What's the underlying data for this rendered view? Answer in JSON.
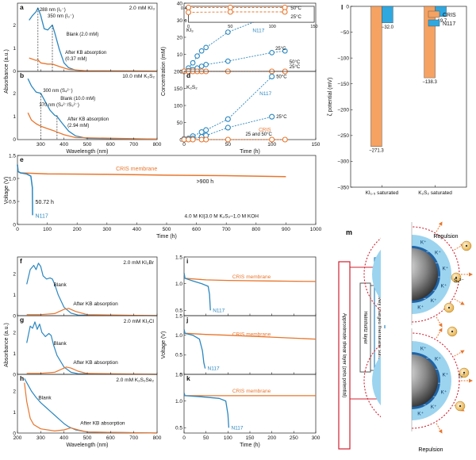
{
  "colors": {
    "orange": "#e8762d",
    "blue": "#2b87c0",
    "orange_fill": "#f5a263",
    "blue_fill": "#2fa8e0"
  },
  "text": {
    "x_wavelength": "Wavelength (nm)",
    "x_time": "Time (h)",
    "y_absorbance": "Absorbance (a.u.)",
    "y_concentration": "Concentration (mM)",
    "y_voltage": "Voltage (V)",
    "y_zeta": "ζ potential (mV)",
    "cris_membrane": "CRIS membrane",
    "n117": "N117",
    "cris": "CRIS",
    "m_outer": "Approximate shear layer (zeta potential)",
    "m_helmholtz": "Helmholtz layer",
    "m_surface": "Negatively charged membrane surface",
    "m_repulsion": "Repulsion",
    "m_kplus": "K⁺",
    "m_sx": "Sₓ²⁻",
    "m_i3": "I₃⁻"
  },
  "chart_data": [
    {
      "id": "a",
      "type": "line",
      "title": "2.0 mM KI₃",
      "xlabel": "Wavelength (nm)",
      "ylabel": "Absorbance (a.u.)",
      "xlim": [
        200,
        800
      ],
      "series": [
        {
          "name": "Blank (2.0 mM)",
          "color": "#2b87c0",
          "x": [
            250,
            265,
            280,
            288,
            300,
            315,
            330,
            345,
            350,
            360,
            380,
            400,
            420,
            450,
            500,
            800
          ],
          "y": [
            2.1,
            2.3,
            2.45,
            2.6,
            2.3,
            1.75,
            1.7,
            1.85,
            1.9,
            1.6,
            0.9,
            0.35,
            0.15,
            0.05,
            0.02,
            0.01
          ]
        },
        {
          "name": "After KB absorption (0.37 mM)",
          "color": "#e8762d",
          "x": [
            250,
            265,
            280,
            288,
            300,
            330,
            350,
            380,
            420,
            500,
            800
          ],
          "y": [
            0.55,
            0.5,
            0.45,
            0.48,
            0.35,
            0.3,
            0.3,
            0.2,
            0.08,
            0.02,
            0.01
          ]
        }
      ],
      "annotations": [
        "288 nm (I₃⁻)",
        "350 nm (I₃⁻)",
        "Blank (2.0 mM)",
        "After KB absorption",
        "(0.37 mM)"
      ]
    },
    {
      "id": "b",
      "type": "line",
      "title": "10.0 mM K₂S₂",
      "xlabel": "Wavelength (nm)",
      "ylabel": "Absorbance (a.u.)",
      "xlim": [
        200,
        800
      ],
      "xticks": [
        300,
        400,
        500,
        600,
        700,
        800
      ],
      "series": [
        {
          "name": "Blank (10.0 mM)",
          "color": "#2b87c0",
          "x": [
            245,
            260,
            280,
            300,
            320,
            340,
            360,
            370,
            390,
            420,
            450,
            500,
            800
          ],
          "y": [
            2.5,
            2.2,
            1.95,
            1.9,
            1.55,
            1.2,
            1.0,
            0.95,
            0.7,
            0.35,
            0.15,
            0.05,
            0.02
          ]
        },
        {
          "name": "After KB absorption (2.94 mM)",
          "color": "#e8762d",
          "x": [
            245,
            260,
            280,
            300,
            330,
            360,
            400,
            450,
            800
          ],
          "y": [
            1.1,
            0.8,
            0.65,
            0.55,
            0.45,
            0.35,
            0.2,
            0.08,
            0.02
          ]
        }
      ],
      "annotations": [
        "300 nm (S₄²⁻)",
        "370 nm (S₄²⁻/S₃²⁻)",
        "Blank (10.0 mM)",
        "After KB absorption",
        "(2.94 mM)"
      ]
    },
    {
      "id": "c",
      "type": "scatter",
      "xlim": [
        0,
        150
      ],
      "ylim": [
        0,
        40
      ],
      "xticks": [
        0,
        50,
        100,
        150
      ],
      "yticks": [
        0,
        10,
        20,
        30,
        40
      ],
      "inset": {
        "xlim": [
          0,
          150
        ],
        "ylim": [
          0,
          0.4
        ],
        "xticks": [
          0,
          50,
          100,
          150
        ],
        "yticks": [
          0,
          0.4
        ]
      },
      "labels": [
        "KI₃",
        "50°C",
        "25°C",
        "N117",
        "CRIS",
        "50°C",
        "25°C"
      ],
      "series": [
        {
          "name": "N117 50°C",
          "color": "#2b87c0",
          "x": [
            0,
            5,
            10,
            15,
            20,
            25,
            50,
            100,
            115
          ],
          "y": [
            0,
            2,
            5,
            9,
            12,
            14,
            23,
            33,
            35
          ]
        },
        {
          "name": "N117 25°C",
          "color": "#2b87c0",
          "x": [
            0,
            5,
            10,
            15,
            20,
            25,
            50,
            100,
            115
          ],
          "y": [
            0,
            0.5,
            1,
            2,
            3,
            4,
            6,
            11,
            12
          ]
        },
        {
          "name": "CRIS",
          "color": "#e8762d",
          "x": [
            0,
            5,
            10,
            15,
            20,
            25,
            50,
            100,
            115
          ],
          "y": [
            0,
            0,
            0,
            0,
            0,
            0,
            0,
            0,
            0
          ]
        },
        {
          "name": "CRIS 50°C inset",
          "color": "#e8762d",
          "x": [
            0,
            50,
            115
          ],
          "y": [
            0.37,
            0.37,
            0.37
          ]
        },
        {
          "name": "CRIS 25°C inset",
          "color": "#e8762d",
          "x": [
            0,
            50,
            115
          ],
          "y": [
            0.25,
            0.26,
            0.26
          ]
        }
      ]
    },
    {
      "id": "d",
      "type": "scatter",
      "xlabel": "Time (h)",
      "xlim": [
        0,
        150
      ],
      "ylim": [
        0,
        200
      ],
      "xticks": [
        0,
        50,
        100,
        150
      ],
      "yticks": [
        0,
        50,
        100,
        150,
        200
      ],
      "labels": [
        "K₂S₂",
        "50°C",
        "N117",
        "25°C",
        "CRIS",
        "25 and 50°C"
      ],
      "series": [
        {
          "name": "N117 50°C",
          "color": "#2b87c0",
          "x": [
            0,
            5,
            10,
            20,
            25,
            50,
            100
          ],
          "y": [
            2,
            3,
            10,
            22,
            28,
            60,
            185
          ]
        },
        {
          "name": "N117 25°C",
          "color": "#2b87c0",
          "x": [
            0,
            5,
            10,
            20,
            25,
            50,
            100
          ],
          "y": [
            0,
            1,
            3,
            8,
            12,
            35,
            67
          ]
        },
        {
          "name": "CRIS",
          "color": "#e8762d",
          "x": [
            0,
            5,
            10,
            20,
            25,
            50,
            100,
            115
          ],
          "y": [
            0,
            0,
            0,
            0,
            0,
            0,
            0,
            0
          ]
        }
      ]
    },
    {
      "id": "e",
      "type": "line",
      "xlabel": "Time (h)",
      "ylabel": "Voltage (V)",
      "xlim": [
        0,
        1000
      ],
      "ylim": [
        0,
        1.5
      ],
      "xticks": [
        0,
        100,
        200,
        300,
        400,
        500,
        600,
        700,
        800,
        900,
        1000
      ],
      "yticks": [
        0,
        0.5,
        1.0,
        1.5
      ],
      "annotations": [
        "CRIS membrane",
        ">900 h",
        "50.72 h",
        "N117",
        "4.0 M KI|3.0 M K₂S₂–1.0 M KOH"
      ],
      "series": [
        {
          "name": "CRIS membrane",
          "color": "#e8762d",
          "x": [
            0,
            2,
            10,
            100,
            300,
            500,
            700,
            900
          ],
          "y": [
            1.3,
            1.15,
            1.12,
            1.1,
            1.09,
            1.07,
            1.06,
            1.04
          ]
        },
        {
          "name": "N117",
          "color": "#2b87c0",
          "x": [
            0,
            2,
            10,
            30,
            45,
            50,
            50.72
          ],
          "y": [
            1.3,
            1.15,
            1.12,
            1.1,
            1.05,
            0.8,
            0.2
          ]
        }
      ]
    },
    {
      "id": "f",
      "type": "line",
      "title": "2.0 mM KI₂Br",
      "ylabel": "Absorbance (a.u.)",
      "xlim": [
        200,
        800
      ],
      "annotations": [
        "Blank",
        "After KB absorption"
      ],
      "series": [
        {
          "name": "Blank",
          "color": "#2b87c0",
          "x": [
            240,
            255,
            270,
            280,
            290,
            300,
            310,
            325,
            340,
            350,
            360,
            375,
            400,
            430,
            460,
            800
          ],
          "y": [
            1.5,
            2.2,
            2.4,
            2.2,
            2.5,
            2.35,
            1.9,
            1.75,
            1.8,
            1.75,
            1.5,
            1.0,
            0.4,
            0.12,
            0.03,
            0.0
          ]
        },
        {
          "name": "After KB absorption",
          "color": "#e8762d",
          "x": [
            240,
            300,
            360,
            380,
            400,
            420,
            450,
            500,
            800
          ],
          "y": [
            0.05,
            0.05,
            0.1,
            0.2,
            0.3,
            0.35,
            0.2,
            0.05,
            0.0
          ]
        }
      ]
    },
    {
      "id": "g",
      "type": "line",
      "title": "2.0 mM KI₂Cl",
      "ylabel": "Absorbance (a.u.)",
      "xlim": [
        200,
        800
      ],
      "annotations": [
        "Blank",
        "After KB absorption"
      ],
      "series": [
        {
          "name": "Blank",
          "color": "#2b87c0",
          "x": [
            240,
            255,
            265,
            275,
            285,
            295,
            305,
            320,
            335,
            345,
            355,
            370,
            400,
            430,
            460,
            800
          ],
          "y": [
            1.5,
            2.3,
            2.2,
            2.5,
            2.15,
            2.4,
            2.0,
            1.8,
            1.95,
            1.85,
            1.4,
            0.9,
            0.35,
            0.1,
            0.03,
            0.0
          ]
        },
        {
          "name": "After KB absorption",
          "color": "#e8762d",
          "x": [
            240,
            300,
            360,
            390,
            410,
            430,
            460,
            500,
            800
          ],
          "y": [
            0.05,
            0.05,
            0.1,
            0.25,
            0.35,
            0.3,
            0.15,
            0.04,
            0.0
          ]
        }
      ]
    },
    {
      "id": "h",
      "type": "line",
      "title": "2.0 mM K₂S₂Se₂",
      "xlabel": "Wavelength (nm)",
      "xlim": [
        200,
        800
      ],
      "xticks": [
        200,
        300,
        400,
        500,
        600,
        700,
        800
      ],
      "annotations": [
        "Blank",
        "After KB absorption"
      ],
      "series": [
        {
          "name": "Blank",
          "color": "#2b87c0",
          "x": [
            230,
            245,
            260,
            280,
            300,
            320,
            340,
            360,
            380,
            400,
            420,
            450,
            500,
            800
          ],
          "y": [
            2.6,
            2.3,
            2.0,
            1.7,
            1.45,
            1.25,
            1.05,
            0.85,
            0.65,
            0.45,
            0.3,
            0.15,
            0.05,
            0.0
          ]
        },
        {
          "name": "After KB absorption",
          "color": "#e8762d",
          "x": [
            230,
            240,
            255,
            270,
            300,
            360,
            400,
            430,
            460,
            500,
            800
          ],
          "y": [
            2.4,
            1.5,
            0.7,
            0.4,
            0.2,
            0.1,
            0.15,
            0.25,
            0.15,
            0.05,
            0.0
          ]
        }
      ]
    },
    {
      "id": "i",
      "type": "line",
      "ylabel": "Voltage (V)",
      "xlim": [
        0,
        300
      ],
      "ylim": [
        0.4,
        1.5
      ],
      "yticks": [
        0.5,
        1.0,
        1.5
      ],
      "annotations": [
        "CRIS membrane",
        "N117"
      ],
      "series": [
        {
          "name": "CRIS membrane",
          "color": "#e8762d",
          "x": [
            0,
            2,
            50,
            100,
            200,
            300
          ],
          "y": [
            1.2,
            1.1,
            1.07,
            1.06,
            1.05,
            1.04
          ]
        },
        {
          "name": "N117",
          "color": "#2b87c0",
          "x": [
            0,
            2,
            20,
            40,
            55,
            58,
            60
          ],
          "y": [
            1.2,
            1.1,
            1.05,
            1.0,
            0.95,
            0.8,
            0.5
          ]
        }
      ]
    },
    {
      "id": "j",
      "type": "line",
      "ylabel": "Voltage (V)",
      "xlim": [
        0,
        300
      ],
      "ylim": [
        0,
        1.5
      ],
      "yticks": [
        0,
        0.5,
        1.0,
        1.5
      ],
      "annotations": [
        "CRIS membrane",
        "N117"
      ],
      "series": [
        {
          "name": "CRIS membrane",
          "color": "#e8762d",
          "x": [
            0,
            2,
            50,
            100,
            200,
            300
          ],
          "y": [
            1.15,
            1.05,
            1.02,
            1.0,
            0.95,
            0.9
          ]
        },
        {
          "name": "N117",
          "color": "#2b87c0",
          "x": [
            0,
            2,
            20,
            35,
            42,
            45,
            48
          ],
          "y": [
            1.15,
            1.05,
            1.0,
            0.9,
            0.6,
            0.3,
            0.15
          ]
        }
      ]
    },
    {
      "id": "k",
      "type": "line",
      "xlabel": "Time (h)",
      "xlim": [
        0,
        300
      ],
      "ylim": [
        0.4,
        1.5
      ],
      "xticks": [
        0,
        50,
        100,
        150,
        200,
        250,
        300
      ],
      "yticks": [
        0.5,
        1.0,
        1.5
      ],
      "annotations": [
        "CRIS membrane",
        "N117"
      ],
      "series": [
        {
          "name": "CRIS membrane",
          "color": "#e8762d",
          "x": [
            0,
            2,
            100,
            200,
            300
          ],
          "y": [
            1.15,
            1.1,
            1.1,
            1.1,
            1.1
          ]
        },
        {
          "name": "N117",
          "color": "#2b87c0",
          "x": [
            0,
            2,
            40,
            80,
            95,
            100,
            102
          ],
          "y": [
            1.15,
            1.1,
            1.08,
            1.05,
            1.0,
            0.75,
            0.5
          ]
        }
      ]
    },
    {
      "id": "l",
      "type": "bar",
      "ylabel": "ζ potential (mV)",
      "categories": [
        "KI₁.₅ saturated",
        "K₂S₂ saturated"
      ],
      "ylim": [
        0,
        -350
      ],
      "yticks": [
        0,
        -50,
        -100,
        -150,
        -200,
        -250,
        -300,
        -350
      ],
      "series": [
        {
          "name": "CRIS",
          "color": "#f5a263",
          "values": [
            -271.3,
            -138.3
          ],
          "labels": [
            "−271.3",
            "−138.3"
          ]
        },
        {
          "name": "N117",
          "color": "#2fa8e0",
          "values": [
            -32.0,
            -19.7
          ],
          "labels": [
            "−32.0",
            "−19.7"
          ]
        }
      ],
      "legend": "top-right"
    }
  ]
}
